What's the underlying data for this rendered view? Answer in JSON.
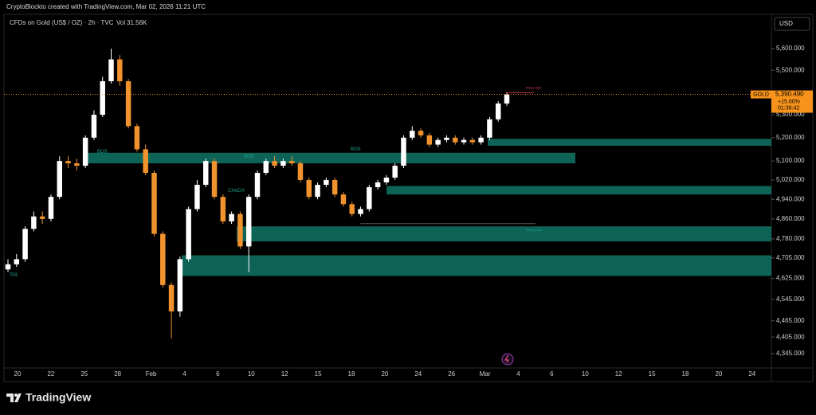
{
  "chart_data": {
    "type": "candlestick",
    "title": "CryptoBlockto created with TradingView.com, Mar 02, 2026 11:21 UTC",
    "symbol": "CFDs on Gold (US$ / OZ) · 2h · TVC",
    "volume_label": "Vol",
    "volume": "31.56K",
    "currency": "USD",
    "brand": "TradingView",
    "log_scale": true,
    "ylim": [
      4293,
      5762
    ],
    "yticks": [
      {
        "value": 5600,
        "label": "5,600.000"
      },
      {
        "value": 5500,
        "label": "5,500.000"
      },
      {
        "value": 5300,
        "label": "5,300.000"
      },
      {
        "value": 5200,
        "label": "5,200.000"
      },
      {
        "value": 5100,
        "label": "5,100.000"
      },
      {
        "value": 5020,
        "label": "5,020.000"
      },
      {
        "value": 4940,
        "label": "4,940.000"
      },
      {
        "value": 4860,
        "label": "4,860.000"
      },
      {
        "value": 4780,
        "label": "4,780.000"
      },
      {
        "value": 4705,
        "label": "4,705.000"
      },
      {
        "value": 4625,
        "label": "4,625.000"
      },
      {
        "value": 4545,
        "label": "4,545.000"
      },
      {
        "value": 4465,
        "label": "4,465.000"
      },
      {
        "value": 4405,
        "label": "4,405.000"
      },
      {
        "value": 4345,
        "label": "4,345.000"
      }
    ],
    "xticks": [
      "20",
      "22",
      "25",
      "28",
      "Feb",
      "4",
      "6",
      "10",
      "12",
      "15",
      "18",
      "20",
      "24",
      "26",
      "Mar",
      "4",
      "6",
      "10",
      "12",
      "15",
      "18",
      "20",
      "24"
    ],
    "open": [
      4660,
      4680,
      4700,
      4820,
      4870,
      4860,
      4950,
      5100,
      5090,
      5080,
      5200,
      5300,
      5450,
      5550,
      5450,
      5250,
      5150,
      5050,
      4800,
      4600,
      4500,
      4700,
      4900,
      5000,
      5100,
      4950,
      4850,
      4880,
      4750,
      4950,
      5050,
      5100,
      5080,
      5100,
      5090,
      5020,
      4950,
      5000,
      5020,
      4960,
      4920,
      4880,
      4900,
      4990,
      5010,
      5030,
      5080,
      5200,
      5230,
      5210,
      5170,
      5190,
      5200,
      5180,
      5190,
      5180,
      5200,
      5280,
      5350
    ],
    "high": [
      4700,
      4720,
      4830,
      4890,
      4890,
      4960,
      5120,
      5120,
      5110,
      5210,
      5320,
      5470,
      5600,
      5570,
      5460,
      5260,
      5170,
      5060,
      4810,
      4610,
      4710,
      4910,
      5020,
      5110,
      5110,
      4960,
      4890,
      4890,
      4960,
      5060,
      5110,
      5120,
      5110,
      5120,
      5100,
      5030,
      5010,
      5030,
      5030,
      4970,
      4930,
      4910,
      5000,
      5020,
      5040,
      5090,
      5210,
      5250,
      5240,
      5220,
      5200,
      5210,
      5210,
      5200,
      5200,
      5210,
      5290,
      5360,
      5400
    ],
    "low": [
      4650,
      4670,
      4690,
      4810,
      4840,
      4850,
      4940,
      5070,
      5060,
      5070,
      5190,
      5290,
      5440,
      5430,
      5240,
      5140,
      5040,
      4790,
      4590,
      4400,
      4480,
      4690,
      4890,
      4990,
      4940,
      4840,
      4840,
      4740,
      4650,
      4940,
      5040,
      5070,
      5070,
      5080,
      5010,
      4940,
      4940,
      4990,
      4950,
      4910,
      4870,
      4870,
      4890,
      4980,
      5000,
      5020,
      5070,
      5190,
      5200,
      5160,
      5160,
      5180,
      5170,
      5170,
      5170,
      5170,
      5190,
      5270,
      5340
    ],
    "close": [
      4680,
      4700,
      4820,
      4870,
      4860,
      4950,
      5100,
      5090,
      5080,
      5200,
      5300,
      5450,
      5550,
      5450,
      5250,
      5150,
      5050,
      4800,
      4600,
      4500,
      4700,
      4900,
      5000,
      5100,
      4950,
      4850,
      4880,
      4750,
      4950,
      5050,
      5100,
      5080,
      5100,
      5090,
      5020,
      4950,
      5000,
      5020,
      4960,
      4920,
      4880,
      4900,
      4990,
      5010,
      5030,
      5080,
      5200,
      5230,
      5210,
      5170,
      5190,
      5200,
      5180,
      5190,
      5180,
      5200,
      5280,
      5350,
      5390.49
    ],
    "up_color": "#ffffff",
    "down_color": "#f0932f",
    "zone_color": "#0f6e61",
    "last_price": {
      "name": "GOLD",
      "value": 5390.49,
      "label": "5,390.490",
      "change": "+15.60%",
      "countdown": "01:38:42",
      "color": "#f7931a"
    },
    "zones": [
      {
        "top": 5135,
        "bottom": 5090
      },
      {
        "top": 5195,
        "bottom": 5165
      },
      {
        "top": 4995,
        "bottom": 4960
      },
      {
        "top": 4830,
        "bottom": 4770
      },
      {
        "top": 4715,
        "bottom": 4635
      }
    ],
    "annotations": [
      {
        "text": "Weak High",
        "value": 5420,
        "color": "#e0405a"
      },
      {
        "text": "Strong Low",
        "value": 4815,
        "color": "#1fa38c"
      },
      {
        "text": "BOS",
        "value": 5150,
        "color": "#1fa38c"
      },
      {
        "text": "BOS",
        "value": 5120,
        "color": "#1fa38c"
      },
      {
        "text": "BOS",
        "value": 5140,
        "color": "#1fa38c"
      },
      {
        "text": "CHoCH",
        "value": 4975,
        "color": "#1fa38c"
      },
      {
        "text": "SSL",
        "value": 4640,
        "color": "#1fa38c"
      }
    ]
  }
}
